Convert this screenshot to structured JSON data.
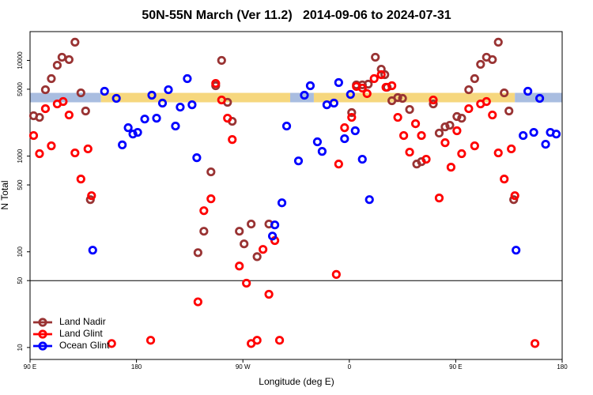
{
  "chart_data": {
    "type": "scatter",
    "title": "50N-55N March (Ver 11.2)   2014-09-06 to 2024-07-31",
    "x_label": "Longitude (deg E)",
    "y_label": "N Total",
    "ylog": true,
    "xlim": [
      90,
      540
    ],
    "xticks": [
      {
        "value": 90,
        "label": "90 E"
      },
      180,
      {
        "value": 270,
        "label": "90 W"
      },
      {
        "value": 360,
        "label": "0"
      },
      {
        "value": 450,
        "label": "90 E"
      },
      {
        "value": 540,
        "label": "180"
      }
    ],
    "ylim": [
      7.5,
      20000
    ],
    "yticks": [
      10,
      50,
      100,
      500,
      1000,
      5000,
      10000
    ],
    "hline": 50,
    "legend_position": "bottom-left",
    "band": {
      "range": [
        3650,
        4580
      ],
      "segments": [
        {
          "xlim": [
            90,
            150
          ],
          "color": "#a9bde0"
        },
        {
          "xlim": [
            150,
            310
          ],
          "color": "#f6d77e"
        },
        {
          "xlim": [
            310,
            330
          ],
          "color": "#a9bde0"
        },
        {
          "xlim": [
            330,
            500
          ],
          "color": "#f6d77e"
        },
        {
          "xlim": [
            500,
            540
          ],
          "color": "#a9bde0"
        }
      ]
    },
    "series": [
      {
        "name": "Land Nadir",
        "color": "#993333",
        "x": [
          93,
          98,
          103,
          108,
          113,
          117,
          123,
          128,
          133,
          137,
          141,
          232,
          237,
          243,
          247,
          252,
          257,
          261,
          267,
          271,
          277,
          282,
          292,
          362,
          366,
          371,
          376,
          382,
          387,
          390,
          392,
          396,
          401,
          405,
          411,
          417,
          421,
          431,
          436,
          441,
          445,
          451,
          455,
          461,
          466,
          471,
          476,
          481,
          486,
          491,
          495,
          499
        ],
        "values": [
          2640,
          2540,
          4940,
          6450,
          8900,
          10800,
          10200,
          15500,
          4580,
          2960,
          351,
          98,
          164,
          684,
          5440,
          10000,
          3650,
          2310,
          164,
          121,
          195,
          89,
          195,
          2850,
          5550,
          5550,
          5650,
          10800,
          8100,
          7100,
          5240,
          3790,
          4090,
          4010,
          3070,
          826,
          875,
          3510,
          1740,
          2020,
          2100,
          2590,
          2490,
          4940,
          6450,
          9100,
          10800,
          10200,
          15500,
          4580,
          2960,
          351
        ]
      },
      {
        "name": "Land Glint",
        "color": "#ff0000",
        "x": [
          93,
          98,
          103,
          108,
          113,
          118,
          123,
          128,
          133,
          139,
          142,
          159,
          192,
          232,
          237,
          243,
          247,
          252,
          257,
          261,
          267,
          273,
          277,
          282,
          287,
          292,
          297,
          301,
          349,
          351,
          356,
          362,
          366,
          371,
          375,
          381,
          387,
          391,
          396,
          401,
          406,
          411,
          416,
          421,
          425,
          431,
          436,
          441,
          446,
          451,
          455,
          461,
          466,
          471,
          476,
          481,
          486,
          491,
          497,
          500,
          517
        ],
        "values": [
          1640,
          1060,
          3130,
          1280,
          3510,
          3720,
          2690,
          1080,
          576,
          1190,
          386,
          11,
          11.9,
          30,
          269,
          358,
          5750,
          3860,
          2490,
          1490,
          71,
          47,
          11,
          11.9,
          106,
          36,
          131,
          11.9,
          58,
          826,
          1980,
          2540,
          5340,
          5140,
          4500,
          6450,
          7100,
          5240,
          5440,
          2540,
          1640,
          1100,
          2180,
          1640,
          927,
          3860,
          365,
          1380,
          766,
          1840,
          1060,
          3130,
          1280,
          3510,
          3720,
          2690,
          1080,
          576,
          1190,
          386,
          11
        ]
      },
      {
        "name": "Ocean Glint",
        "color": "#0000ff",
        "x": [
          143,
          153,
          163,
          168,
          173,
          177,
          181,
          187,
          193,
          197,
          202,
          207,
          213,
          217,
          223,
          227,
          231,
          295,
          297,
          303,
          307,
          317,
          322,
          327,
          333,
          337,
          341,
          347,
          351,
          356,
          361,
          365,
          371,
          377,
          501,
          507,
          511,
          516,
          521,
          526,
          530,
          535
        ],
        "values": [
          104,
          4760,
          4010,
          1310,
          1980,
          1700,
          1770,
          2440,
          4330,
          2490,
          3580,
          4940,
          2060,
          3250,
          6450,
          3440,
          962,
          146,
          191,
          325,
          2060,
          891,
          4330,
          5440,
          1410,
          1120,
          3440,
          3580,
          5870,
          1520,
          4410,
          1840,
          927,
          351,
          104,
          1640,
          4760,
          1770,
          4010,
          1330,
          1770,
          1700
        ]
      }
    ]
  }
}
